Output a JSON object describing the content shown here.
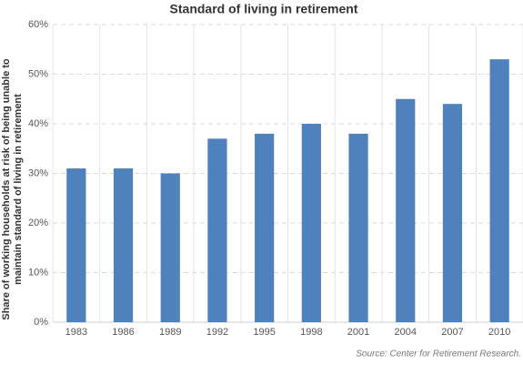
{
  "chart_data": {
    "type": "bar",
    "title": "Standard of living in retirement",
    "ylabel_lines": [
      "Share of working households at risk of being unable to",
      "maintain standard of living in retirement"
    ],
    "xlabel": "",
    "categories": [
      "1983",
      "1986",
      "1989",
      "1992",
      "1995",
      "1998",
      "2001",
      "2004",
      "2007",
      "2010"
    ],
    "values": [
      31,
      31,
      30,
      37,
      38,
      40,
      38,
      45,
      44,
      53
    ],
    "ylim": [
      0,
      60
    ],
    "yticks": [
      0,
      10,
      20,
      30,
      40,
      50,
      60
    ],
    "ytick_suffix": "%",
    "bar_color": "#4f81bd",
    "grid": true,
    "source": "Source: Center for Retirement Research."
  }
}
